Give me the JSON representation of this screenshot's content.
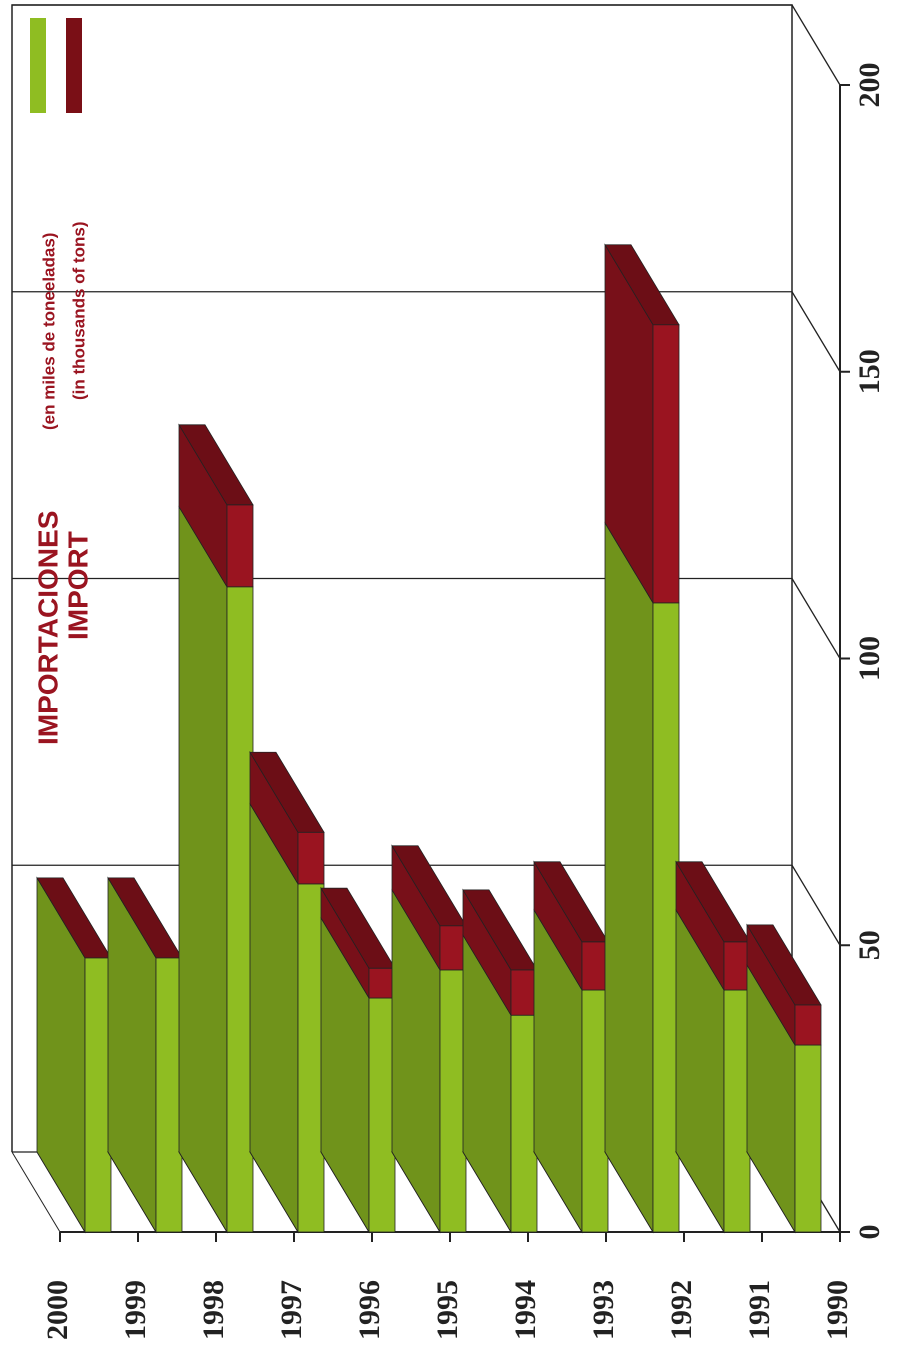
{
  "chart_data": {
    "type": "bar3d_stacked",
    "title": "IMPORTACIONES",
    "subtitle": "(en miles de toneeladas)",
    "title_en": "IMPORT",
    "subtitle_en": "(in thousands of tons)",
    "categories": [
      "2000",
      "1999",
      "1998",
      "1997",
      "1996",
      "1995",
      "1994",
      "1993",
      "1992",
      "1991",
      "1990"
    ],
    "series": [
      {
        "color": "#8fbd22",
        "values": [
          47.8,
          47.8,
          112.5,
          60.7,
          40.8,
          45.7,
          37.8,
          42.2,
          109.7,
          42.2,
          32.6
        ]
      },
      {
        "color": "#9a1420",
        "values": [
          0,
          0,
          14.3,
          9.0,
          5.2,
          7.7,
          7.9,
          8.4,
          48.5,
          8.4,
          7.0
        ]
      }
    ],
    "ylim": [
      0,
      200
    ],
    "yticks": [
      0,
      50,
      100,
      150,
      200
    ],
    "grid": true
  }
}
